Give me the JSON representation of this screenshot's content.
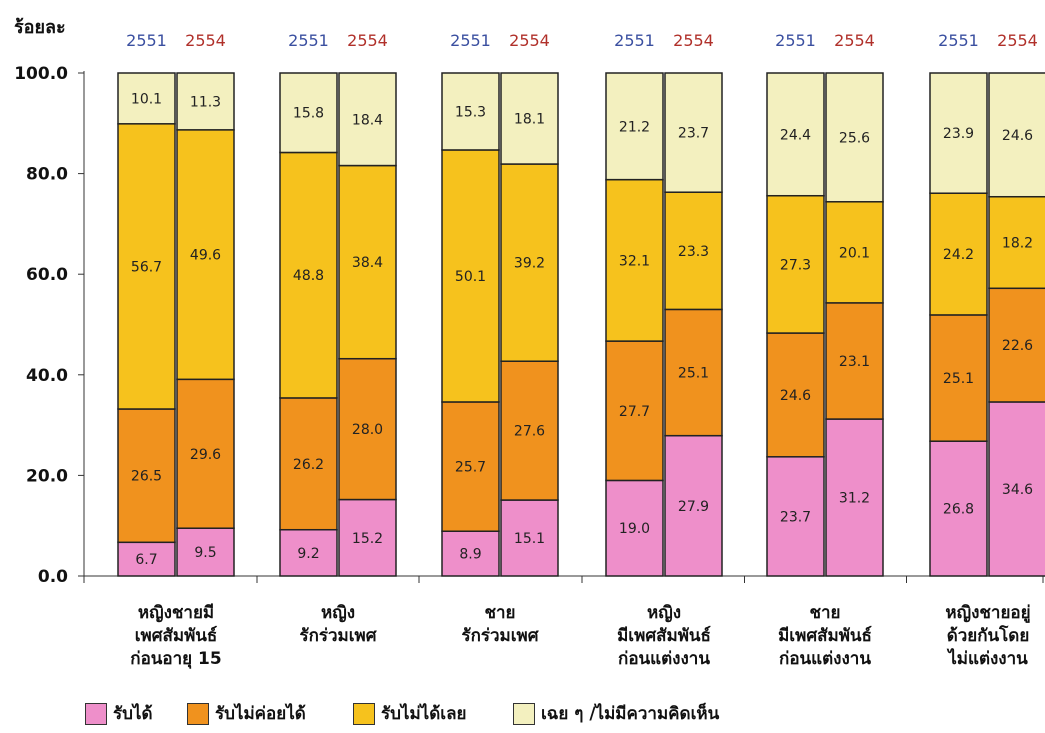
{
  "chart_data": {
    "type": "bar",
    "stacked": true,
    "ylabel": "ร้อยละ",
    "ylim": [
      0,
      100
    ],
    "yticks": [
      "0.0",
      "20.0",
      "40.0",
      "60.0",
      "80.0",
      "100.0"
    ],
    "year_labels": [
      "2551",
      "2554"
    ],
    "year_colors": [
      "#3a4fa0",
      "#b0302a"
    ],
    "groups": [
      [
        "หญิงชายมี",
        "เพศสัมพันธ์",
        "ก่อนอายุ 15"
      ],
      [
        "หญิง",
        "รักร่วมเพศ"
      ],
      [
        "ชาย",
        "รักร่วมเพศ"
      ],
      [
        "หญิง",
        "มีเพศสัมพันธ์",
        "ก่อนแต่งงาน"
      ],
      [
        "ชาย",
        "มีเพศสัมพันธ์",
        "ก่อนแต่งงาน"
      ],
      [
        "หญิงชายอยู่",
        "ด้วยกันโดย",
        "ไม่แต่งงาน"
      ]
    ],
    "series": [
      {
        "name": "รับได้",
        "color": "#ee8fca",
        "values": [
          [
            6.7,
            9.5
          ],
          [
            9.2,
            15.2
          ],
          [
            8.9,
            15.1
          ],
          [
            19.0,
            27.9
          ],
          [
            23.7,
            31.2
          ],
          [
            26.8,
            34.6
          ]
        ]
      },
      {
        "name": "รับไม่ค่อยได้",
        "color": "#f0921e",
        "values": [
          [
            26.5,
            29.6
          ],
          [
            26.2,
            28.0
          ],
          [
            25.7,
            27.6
          ],
          [
            27.7,
            25.1
          ],
          [
            24.6,
            23.1
          ],
          [
            25.1,
            22.6
          ]
        ]
      },
      {
        "name": "รับไม่ได้เลย",
        "color": "#f6c21d",
        "values": [
          [
            56.7,
            49.6
          ],
          [
            48.8,
            38.4
          ],
          [
            50.1,
            39.2
          ],
          [
            32.1,
            23.3
          ],
          [
            27.3,
            20.1
          ],
          [
            24.2,
            18.2
          ]
        ]
      },
      {
        "name": "เฉย ๆ /ไม่มีความคิดเห็น",
        "color": "#f3f0bf",
        "values": [
          [
            10.1,
            11.3
          ],
          [
            15.8,
            18.4
          ],
          [
            15.3,
            18.1
          ],
          [
            21.2,
            23.7
          ],
          [
            24.4,
            25.6
          ],
          [
            23.9,
            24.6
          ]
        ]
      }
    ],
    "legend_position": "bottom"
  }
}
